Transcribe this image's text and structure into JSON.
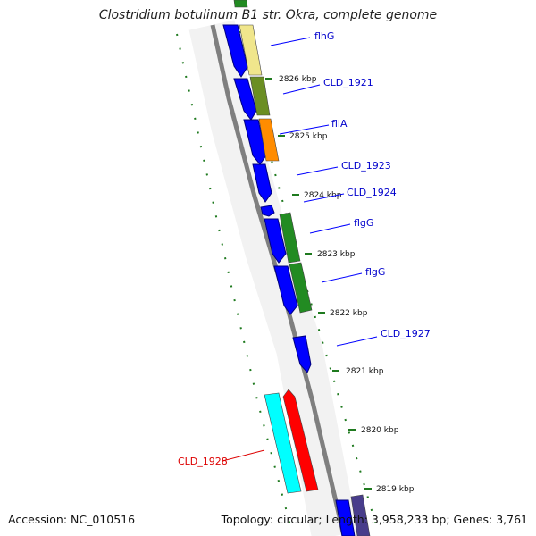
{
  "title": "Clostridium botulinum B1 str. Okra, complete genome",
  "footer": {
    "accession": "Accession: NC_010516",
    "stats": "Topology: circular; Length: 3,958,233 bp; Genes: 3,761"
  },
  "colors": {
    "backbone": "#7a7a7a",
    "forward_strand": "#0000ff",
    "gene_label": "#0000cc",
    "highlight_label": "#dd0000",
    "tick": "#1a7a1a",
    "band_light_yellow": "#f0e68c",
    "band_olive": "#6b8e23",
    "band_orange": "#ff8c00",
    "band_green": "#228b22",
    "band_cyan": "#00ffff",
    "band_red": "#ff0000",
    "band_slate": "#483d8b"
  },
  "kbp_labels": [
    "2826 kbp",
    "2825 kbp",
    "2824 kbp",
    "2823 kbp",
    "2822 kbp",
    "2821 kbp",
    "2820 kbp",
    "2819 kbp"
  ],
  "gene_labels": [
    "flhG",
    "CLD_1921",
    "fliA",
    "CLD_1923",
    "CLD_1924",
    "flgG",
    "flgG",
    "CLD_1927",
    "CLD_1928"
  ]
}
